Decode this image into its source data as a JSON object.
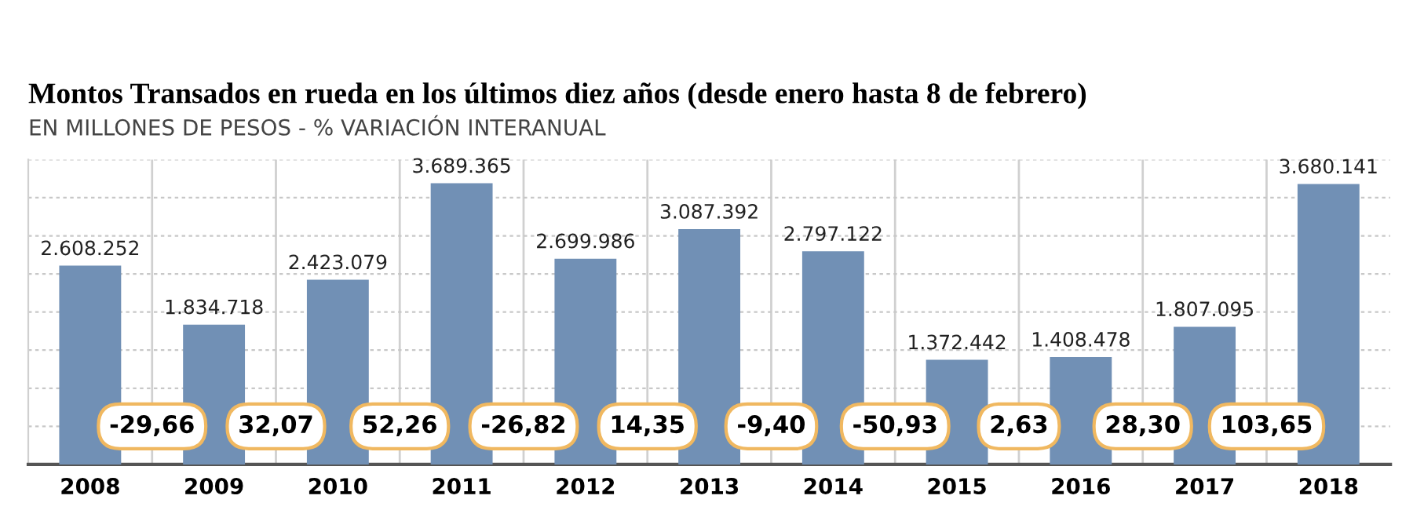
{
  "chart_data": {
    "type": "bar",
    "title": "Montos Transados en rueda en los últimos diez años (desde enero hasta 8 de febrero)",
    "subtitle": "EN MILLONES DE PESOS - % VARIACIÓN INTERANUAL",
    "categories": [
      "2008",
      "2009",
      "2010",
      "2011",
      "2012",
      "2013",
      "2014",
      "2015",
      "2016",
      "2017",
      "2018"
    ],
    "values": [
      2608252,
      1834718,
      2423079,
      3689365,
      2699986,
      3087392,
      2797122,
      1372442,
      1408478,
      1807095,
      3680141
    ],
    "value_labels": [
      "2.608.252",
      "1.834.718",
      "2.423.079",
      "3.689.365",
      "2.699.986",
      "3.087.392",
      "2.797.122",
      "1.372.442",
      "1.408.478",
      "1.807.095",
      "3.680.141"
    ],
    "color": "#7190b5",
    "annotations": [
      "-29,66",
      "32,07",
      "52,26",
      "-26,82",
      "14,35",
      "-9,40",
      "-50,93",
      "2,63",
      "28,30",
      "103,65"
    ],
    "ylim": [
      0,
      4000000
    ],
    "yticks": [
      {
        "value": 500000,
        "label": null
      },
      {
        "value": 1000000,
        "label": null
      },
      {
        "value": 1500000,
        "label": null
      },
      {
        "value": 2000000,
        "label": null
      },
      {
        "value": 2500000,
        "label": null
      },
      {
        "value": 3000000,
        "label": null
      },
      {
        "value": 3500000,
        "label": null
      },
      {
        "value": 4000000,
        "label": null
      }
    ],
    "tick_labels": "x",
    "grid": true,
    "legend": false
  }
}
